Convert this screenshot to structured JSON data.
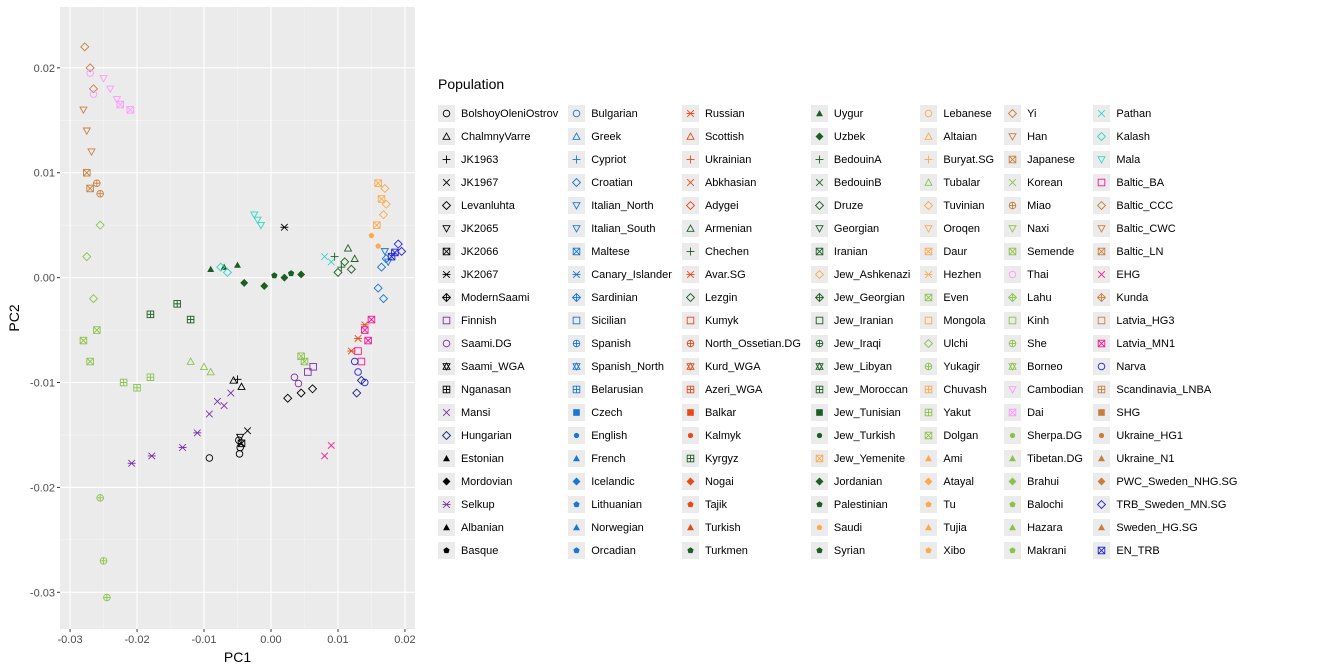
{
  "chart_data": {
    "type": "scatter",
    "xlabel": "PC1",
    "ylabel": "PC2",
    "xlim": [
      -0.0315,
      0.0215
    ],
    "ylim": [
      -0.0335,
      0.0258
    ],
    "xticks": [
      -0.03,
      -0.02,
      -0.01,
      0.0,
      0.01,
      0.02
    ],
    "xtick_labels": [
      "-0.03",
      "-0.02",
      "-0.01",
      "0.00",
      "0.01",
      "0.02"
    ],
    "yticks": [
      -0.03,
      -0.02,
      -0.01,
      0.0,
      0.01,
      0.02
    ],
    "ytick_labels": [
      "-0.03",
      "-0.02",
      "-0.01",
      "0.00",
      "0.01",
      "0.02"
    ],
    "grid": true,
    "legend_position": "right",
    "legend_title": "Population",
    "series": [
      {
        "name": "BolshoyOleniOstrov",
        "color": "#000000",
        "marker": "circle",
        "x": [
          -0.0092,
          -0.0048,
          -0.0046,
          -0.0047
        ],
        "y": [
          -0.0172,
          -0.0155,
          -0.0162,
          -0.0168
        ]
      },
      {
        "name": "ChalmnyVarre",
        "color": "#000000",
        "marker": "triangle-up",
        "x": [
          -0.0056,
          -0.0044
        ],
        "y": [
          -0.0098,
          -0.0104
        ]
      },
      {
        "name": "JK1963",
        "color": "#000000",
        "marker": "plus",
        "x": [
          -0.005
        ],
        "y": [
          -0.0097
        ]
      },
      {
        "name": "JK1967",
        "color": "#000000",
        "marker": "x",
        "x": [
          -0.0035
        ],
        "y": [
          -0.0146
        ]
      },
      {
        "name": "Levanluhta",
        "color": "#000000",
        "marker": "diamond",
        "x": [
          0.0025,
          0.0045,
          0.0062
        ],
        "y": [
          -0.0115,
          -0.011,
          -0.0106
        ]
      },
      {
        "name": "JK2065",
        "color": "#000000",
        "marker": "triangle-down",
        "x": [
          -0.0046
        ],
        "y": [
          -0.0152
        ]
      },
      {
        "name": "JK2066",
        "color": "#000000",
        "marker": "square-x",
        "x": [
          -0.0044
        ],
        "y": [
          -0.0158
        ]
      },
      {
        "name": "JK2067",
        "color": "#000000",
        "marker": "asterisk",
        "x": [
          0.002
        ],
        "y": [
          0.0048
        ]
      },
      {
        "name": "Finnish",
        "color": "#7b2fa8",
        "marker": "square",
        "x": [
          0.0055,
          0.0063
        ],
        "y": [
          -0.009,
          -0.0085
        ]
      },
      {
        "name": "Saami.DG",
        "color": "#7b2fa8",
        "marker": "circle",
        "x": [
          0.0035,
          0.0041
        ],
        "y": [
          -0.0095,
          -0.0101
        ]
      },
      {
        "name": "Mansi",
        "color": "#7b2fa8",
        "marker": "x",
        "x": [
          -0.0092,
          -0.008,
          -0.006,
          -0.007
        ],
        "y": [
          -0.013,
          -0.0118,
          -0.011,
          -0.0122
        ]
      },
      {
        "name": "Selkup",
        "color": "#7b2fa8",
        "marker": "asterisk",
        "x": [
          -0.0208,
          -0.0178,
          -0.0132,
          -0.011
        ],
        "y": [
          -0.0177,
          -0.017,
          -0.0162,
          -0.0148
        ]
      },
      {
        "name": "Hungarian",
        "color": "#1a237e",
        "marker": "diamond",
        "x": [
          0.0128,
          0.0135
        ],
        "y": [
          -0.011,
          -0.0098
        ]
      },
      {
        "name": "Russian",
        "color": "#e64a19",
        "marker": "asterisk",
        "x": [
          0.012,
          0.013,
          0.014
        ],
        "y": [
          -0.007,
          -0.0058,
          -0.0045
        ]
      },
      {
        "name": "Croatian",
        "color": "#1976d2",
        "marker": "diamond",
        "x": [
          0.016,
          0.0165,
          0.0172,
          0.0168
        ],
        "y": [
          -0.001,
          0.001,
          0.0018,
          -0.002
        ]
      },
      {
        "name": "Italian_North",
        "color": "#1976d2",
        "marker": "triangle-down",
        "x": [
          0.017,
          0.0175
        ],
        "y": [
          0.0025,
          0.0015
        ]
      },
      {
        "name": "Lezgin",
        "color": "#1b5e20",
        "marker": "diamond",
        "x": [
          0.01,
          0.011,
          0.012
        ],
        "y": [
          0.0005,
          0.0015,
          0.0008
        ]
      },
      {
        "name": "Chechen",
        "color": "#1b5e20",
        "marker": "plus",
        "x": [
          0.0095,
          0.0105
        ],
        "y": [
          0.002,
          0.001
        ]
      },
      {
        "name": "Armenian",
        "color": "#1b5e20",
        "marker": "triangle-up",
        "x": [
          0.0115,
          0.0125
        ],
        "y": [
          0.0028,
          0.0018
        ]
      },
      {
        "name": "Kyrgyz",
        "color": "#1b5e20",
        "marker": "square-plus",
        "x": [
          -0.018,
          -0.014,
          -0.012
        ],
        "y": [
          -0.0035,
          -0.0025,
          -0.004
        ]
      },
      {
        "name": "Uygur",
        "color": "#1b5e20",
        "marker": "triangle-filled",
        "x": [
          -0.009,
          -0.007,
          -0.005
        ],
        "y": [
          0.0008,
          0.001,
          0.0012
        ]
      },
      {
        "name": "Uzbek",
        "color": "#1b5e20",
        "marker": "diamond-filled",
        "x": [
          -0.004,
          -0.001,
          0.002,
          0.0045
        ],
        "y": [
          -0.0005,
          -0.0008,
          0.0,
          0.0003
        ]
      },
      {
        "name": "Turkmen",
        "color": "#1b5e20",
        "marker": "pentagon-filled",
        "x": [
          0.0005,
          0.003
        ],
        "y": [
          0.0002,
          0.0004
        ]
      },
      {
        "name": "Jew_Ashkenazi",
        "color": "#ffa94d",
        "marker": "diamond",
        "x": [
          0.017,
          0.0172,
          0.0168
        ],
        "y": [
          0.0085,
          0.007,
          0.006
        ]
      },
      {
        "name": "Jew_Yemenite",
        "color": "#ffa94d",
        "marker": "square-x",
        "x": [
          0.016,
          0.0165,
          0.0158
        ],
        "y": [
          0.009,
          0.0075,
          0.005
        ]
      },
      {
        "name": "Saudi",
        "color": "#ffa94d",
        "marker": "circle-filled",
        "x": [
          0.015,
          0.016
        ],
        "y": [
          0.004,
          0.003
        ]
      },
      {
        "name": "Even",
        "color": "#8bc34a",
        "marker": "square-x",
        "x": [
          -0.028,
          -0.027,
          -0.026
        ],
        "y": [
          -0.006,
          -0.008,
          -0.005
        ]
      },
      {
        "name": "Ulchi",
        "color": "#8bc34a",
        "marker": "diamond",
        "x": [
          -0.0275,
          -0.0265,
          -0.0255
        ],
        "y": [
          0.002,
          -0.002,
          0.005
        ]
      },
      {
        "name": "Yukagir",
        "color": "#8bc34a",
        "marker": "circle-plus",
        "x": [
          -0.0255,
          -0.025,
          -0.0245
        ],
        "y": [
          -0.021,
          -0.027,
          -0.0305
        ]
      },
      {
        "name": "Yakut",
        "color": "#8bc34a",
        "marker": "square-plus",
        "x": [
          -0.022,
          -0.02,
          -0.018
        ],
        "y": [
          -0.01,
          -0.0105,
          -0.0095
        ]
      },
      {
        "name": "Tubalar",
        "color": "#8bc34a",
        "marker": "triangle-up",
        "x": [
          -0.012,
          -0.01,
          -0.009
        ],
        "y": [
          -0.008,
          -0.0085,
          -0.009
        ]
      },
      {
        "name": "Dolgan",
        "color": "#8bc34a",
        "marker": "square-x",
        "x": [
          0.0045,
          0.005
        ],
        "y": [
          -0.0075,
          -0.008
        ]
      },
      {
        "name": "Yi",
        "color": "#c87f3e",
        "marker": "diamond",
        "x": [
          -0.0278,
          -0.027,
          -0.0265
        ],
        "y": [
          0.022,
          0.02,
          0.018
        ]
      },
      {
        "name": "Han",
        "color": "#c87f3e",
        "marker": "triangle-down",
        "x": [
          -0.028,
          -0.0275,
          -0.0268
        ],
        "y": [
          0.016,
          0.014,
          0.012
        ]
      },
      {
        "name": "Japanese",
        "color": "#c87f3e",
        "marker": "square-x",
        "x": [
          -0.0275,
          -0.027
        ],
        "y": [
          0.01,
          0.0085
        ]
      },
      {
        "name": "Miao",
        "color": "#c87f3e",
        "marker": "circle-plus",
        "x": [
          -0.026,
          -0.0255
        ],
        "y": [
          0.009,
          0.008
        ]
      },
      {
        "name": "Thai",
        "color": "#ff99ff",
        "marker": "circle",
        "x": [
          -0.027,
          -0.0265
        ],
        "y": [
          0.0195,
          0.0175
        ]
      },
      {
        "name": "Cambodian",
        "color": "#ff99ff",
        "marker": "triangle-down",
        "x": [
          -0.025,
          -0.024,
          -0.023
        ],
        "y": [
          0.019,
          0.018,
          0.017
        ]
      },
      {
        "name": "Dai",
        "color": "#ff99ff",
        "marker": "square-x",
        "x": [
          -0.0225,
          -0.021
        ],
        "y": [
          0.0165,
          0.016
        ]
      },
      {
        "name": "Kalash",
        "color": "#33d6c6",
        "marker": "diamond",
        "x": [
          -0.0075,
          -0.0065
        ],
        "y": [
          0.001,
          0.0005
        ]
      },
      {
        "name": "Mala",
        "color": "#33d6c6",
        "marker": "triangle-down",
        "x": [
          -0.0025,
          -0.002,
          -0.0015
        ],
        "y": [
          0.006,
          0.0055,
          0.005
        ]
      },
      {
        "name": "Pathan",
        "color": "#33d6c6",
        "marker": "x",
        "x": [
          0.008,
          0.009
        ],
        "y": [
          0.002,
          0.0015
        ]
      },
      {
        "name": "Latvia_MN1",
        "color": "#ff1493",
        "marker": "square-x",
        "x": [
          0.014,
          0.0145,
          0.015
        ],
        "y": [
          -0.005,
          -0.006,
          -0.004
        ]
      },
      {
        "name": "Baltic_BA",
        "color": "#ff1493",
        "marker": "square",
        "x": [
          0.013,
          0.0135
        ],
        "y": [
          -0.007,
          -0.008
        ]
      },
      {
        "name": "EHG",
        "color": "#ff1493",
        "marker": "x",
        "x": [
          0.008,
          0.009
        ],
        "y": [
          -0.017,
          -0.016
        ]
      },
      {
        "name": "Narva",
        "color": "#2222dd",
        "marker": "circle",
        "x": [
          0.0125,
          0.013,
          0.014
        ],
        "y": [
          -0.008,
          -0.009,
          -0.01
        ]
      },
      {
        "name": "TRB_Sweden_MN.SG",
        "color": "#2222dd",
        "marker": "diamond",
        "x": [
          0.019,
          0.0195
        ],
        "y": [
          0.0032,
          0.0025
        ]
      },
      {
        "name": "EN_TRB",
        "color": "#2222dd",
        "marker": "square-x",
        "x": [
          0.018,
          0.0185
        ],
        "y": [
          0.002,
          0.0024
        ]
      }
    ],
    "legend": [
      [
        "BolshoyOleniOstrov",
        "ChalmnyVarre",
        "JK1963",
        "JK1967",
        "Levanluhta",
        "JK2065",
        "JK2066",
        "JK2067",
        "ModernSaami",
        "Finnish",
        "Saami.DG",
        "Saami_WGA",
        "Nganasan",
        "Mansi",
        "Hungarian",
        "Estonian",
        "Mordovian",
        "Selkup",
        "Albanian",
        "Basque"
      ],
      [
        "Bulgarian",
        "Greek",
        "Cypriot",
        "Croatian",
        "Italian_North",
        "Italian_South",
        "Maltese",
        "Canary_Islander",
        "Sardinian",
        "Sicilian",
        "Spanish",
        "Spanish_North",
        "Belarusian",
        "Czech",
        "English",
        "French",
        "Icelandic",
        "Lithuanian",
        "Norwegian",
        "Orcadian"
      ],
      [
        "Russian",
        "Scottish",
        "Ukrainian",
        "Abkhasian",
        "Adygei",
        "Armenian",
        "Chechen",
        "Avar.SG",
        "Lezgin",
        "Kumyk",
        "North_Ossetian.DG",
        "Kurd_WGA",
        "Azeri_WGA",
        "Balkar",
        "Kalmyk",
        "Kyrgyz",
        "Nogai",
        "Tajik",
        "Turkish",
        "Turkmen"
      ],
      [
        "Uygur",
        "Uzbek",
        "BedouinA",
        "BedouinB",
        "Druze",
        "Georgian",
        "Iranian",
        "Jew_Ashkenazi",
        "Jew_Georgian",
        "Jew_Iranian",
        "Jew_Iraqi",
        "Jew_Libyan",
        "Jew_Moroccan",
        "Jew_Tunisian",
        "Jew_Turkish",
        "Jew_Yemenite",
        "Jordanian",
        "Palestinian",
        "Saudi",
        "Syrian"
      ],
      [
        "Lebanese",
        "Altaian",
        "Buryat.SG",
        "Tubalar",
        "Tuvinian",
        "Oroqen",
        "Daur",
        "Hezhen",
        "Even",
        "Mongola",
        "Ulchi",
        "Yukagir",
        "Chuvash",
        "Yakut",
        "Dolgan",
        "Ami",
        "Atayal",
        "Tu",
        "Tujia",
        "Xibo"
      ],
      [
        "Yi",
        "Han",
        "Japanese",
        "Korean",
        "Miao",
        "Naxi",
        "Semende",
        "Thai",
        "Lahu",
        "Kinh",
        "She",
        "Borneo",
        "Cambodian",
        "Dai",
        "Sherpa.DG",
        "Tibetan.DG",
        "Brahui",
        "Balochi",
        "Hazara",
        "Makrani"
      ],
      [
        "Pathan",
        "Kalash",
        "Mala",
        "Baltic_BA",
        "Baltic_CCC",
        "Baltic_CWC",
        "Baltic_LN",
        "EHG",
        "Kunda",
        "Latvia_HG3",
        "Latvia_MN1",
        "Narva",
        "Scandinavia_LNBA",
        "SHG",
        "Ukraine_HG1",
        "Ukraine_N1",
        "PWC_Sweden_NHG.SG",
        "TRB_Sweden_MN.SG",
        "Sweden_HG.SG",
        "EN_TRB"
      ]
    ],
    "legend_colors": [
      "#000000",
      "#1976d2",
      "#e64a19",
      "#1b5e20",
      "#ffa94d",
      "#8bc34a",
      "#c87f3e",
      "#ff99ff",
      "#33d6c6",
      "#ff1493",
      "#2222dd",
      "#7b2fa8"
    ],
    "legend_markers": [
      "circle",
      "triangle-up",
      "plus",
      "x",
      "diamond",
      "triangle-down",
      "square-x",
      "asterisk",
      "diamond-plus",
      "square",
      "circle-plus",
      "star",
      "square-plus",
      "square-filled",
      "circle-filled",
      "triangle-filled",
      "diamond-filled",
      "pentagon-filled",
      "triangle-filled",
      "pentagon-filled"
    ]
  }
}
